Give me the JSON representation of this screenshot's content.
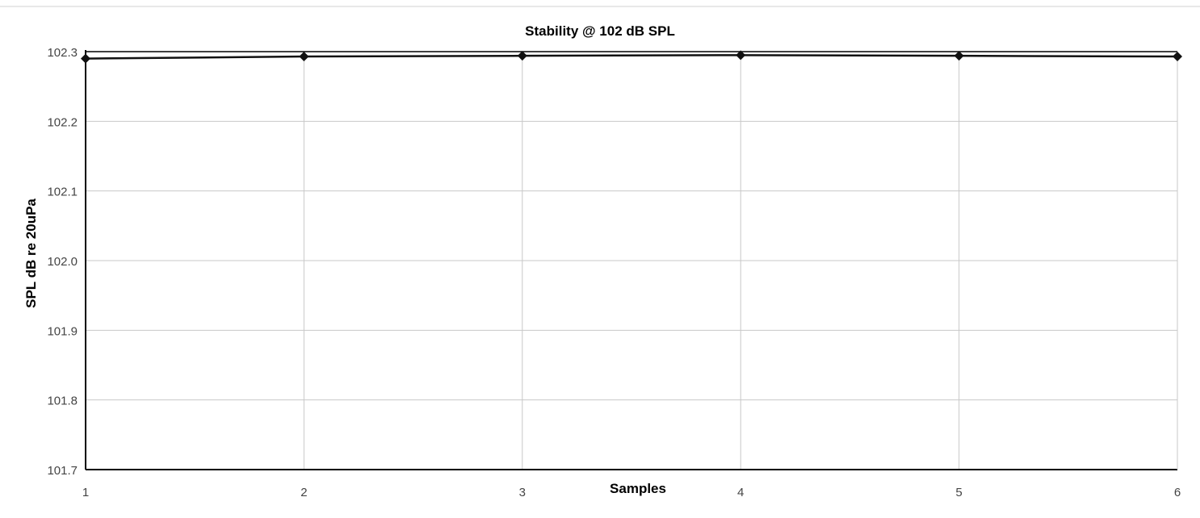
{
  "chart_data": {
    "type": "line",
    "title": "Stability @ 102 dB SPL",
    "xlabel": "Samples",
    "ylabel": "SPL dB re 20uPa",
    "x": [
      1,
      2,
      3,
      4,
      5,
      6
    ],
    "x_tick_labels": [
      "1",
      "2",
      "3",
      "4",
      "5",
      "6"
    ],
    "y_tick_labels": [
      "102.3",
      "102.2",
      "102.1",
      "102.0",
      "101.9",
      "101.8",
      "101.7"
    ],
    "y_ticks": [
      102.3,
      102.2,
      102.1,
      102.0,
      101.9,
      101.8,
      101.7
    ],
    "ylim": [
      101.7,
      102.3
    ],
    "xlim": [
      1,
      6
    ],
    "series": [
      {
        "values": [
          102.29,
          102.293,
          102.294,
          102.295,
          102.294,
          102.293
        ],
        "marker": "diamond"
      }
    ],
    "grid": true,
    "legend": "none",
    "colors": {
      "line": "#111111",
      "marker": "#111111",
      "grid": "#c8c8c8",
      "axis": "#000000",
      "text": "#000000",
      "tick_text": "#444444"
    }
  }
}
